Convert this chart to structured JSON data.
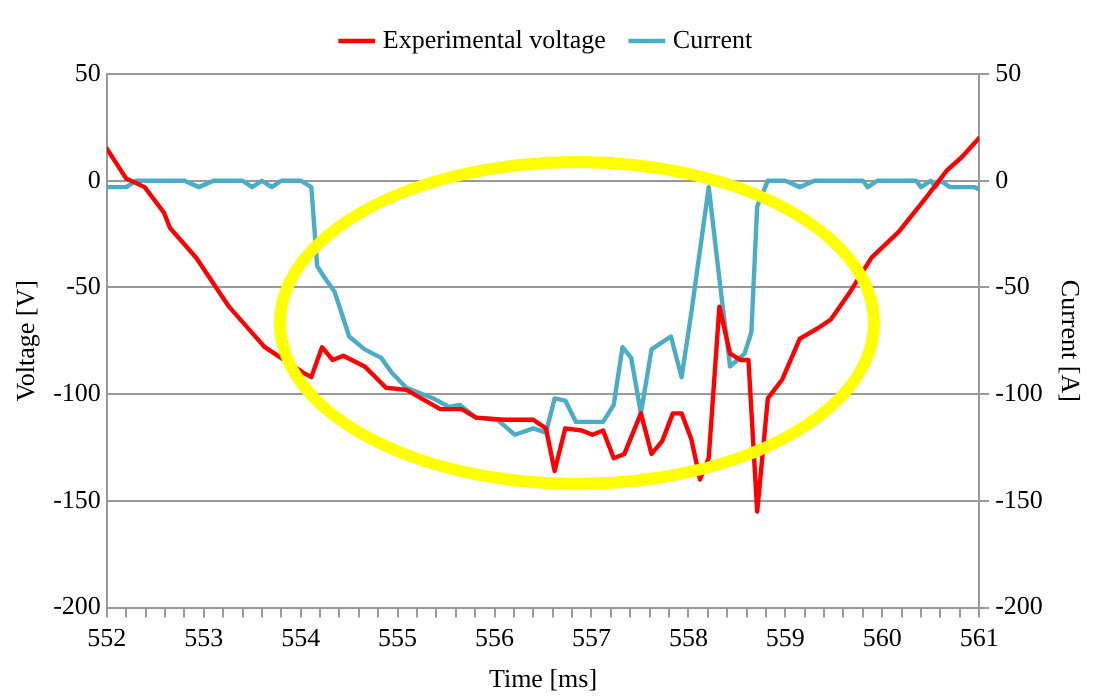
{
  "chart_data": {
    "type": "line",
    "xlabel": "Time [ms]",
    "ylabel": "Voltage [V]",
    "y2label": "Current [A]",
    "xlim": [
      552,
      561
    ],
    "xticks": [
      552,
      {
        "value": 552.2,
        "label": null
      },
      {
        "value": 552.4,
        "label": null
      },
      {
        "value": 552.6,
        "label": null
      },
      {
        "value": 552.8,
        "label": null
      },
      553,
      {
        "value": 553.2,
        "label": null
      },
      {
        "value": 553.4,
        "label": null
      },
      {
        "value": 553.6,
        "label": null
      },
      {
        "value": 553.8,
        "label": null
      },
      554,
      {
        "value": 554.2,
        "label": null
      },
      {
        "value": 554.4,
        "label": null
      },
      {
        "value": 554.6,
        "label": null
      },
      {
        "value": 554.8,
        "label": null
      },
      555,
      {
        "value": 555.2,
        "label": null
      },
      {
        "value": 555.4,
        "label": null
      },
      {
        "value": 555.6,
        "label": null
      },
      {
        "value": 555.8,
        "label": null
      },
      556,
      {
        "value": 556.2,
        "label": null
      },
      {
        "value": 556.4,
        "label": null
      },
      {
        "value": 556.6,
        "label": null
      },
      {
        "value": 556.8,
        "label": null
      },
      557,
      {
        "value": 557.2,
        "label": null
      },
      {
        "value": 557.4,
        "label": null
      },
      {
        "value": 557.6,
        "label": null
      },
      {
        "value": 557.8,
        "label": null
      },
      558,
      {
        "value": 558.2,
        "label": null
      },
      {
        "value": 558.4,
        "label": null
      },
      {
        "value": 558.6,
        "label": null
      },
      {
        "value": 558.8,
        "label": null
      },
      559,
      {
        "value": 559.2,
        "label": null
      },
      {
        "value": 559.4,
        "label": null
      },
      {
        "value": 559.6,
        "label": null
      },
      {
        "value": 559.8,
        "label": null
      },
      560,
      {
        "value": 560.2,
        "label": null
      },
      {
        "value": 560.4,
        "label": null
      },
      {
        "value": 560.6,
        "label": null
      },
      {
        "value": 560.8,
        "label": null
      },
      561
    ],
    "ylim": [
      -200,
      50
    ],
    "yticks": [
      -200,
      -150,
      -100,
      -50,
      0,
      50
    ],
    "y2lim": [
      -200,
      50
    ],
    "y2ticks": [
      -200,
      -150,
      -100,
      -50,
      0,
      50
    ],
    "grid": "y",
    "legend": "top",
    "marker": "none",
    "line_style": "solid",
    "series": [
      {
        "name": "Experimental voltage",
        "color": "#ff0000",
        "x": [
          552.0,
          552.2,
          552.39,
          552.59,
          552.65,
          552.92,
          553.26,
          553.63,
          554.03,
          554.11,
          554.22,
          554.33,
          554.44,
          554.66,
          554.88,
          555.09,
          555.44,
          555.66,
          555.81,
          556.1,
          556.4,
          556.53,
          556.62,
          556.73,
          556.9,
          557.01,
          557.12,
          557.23,
          557.34,
          557.51,
          557.62,
          557.73,
          557.84,
          557.93,
          558.03,
          558.12,
          558.21,
          558.32,
          558.43,
          558.54,
          558.62,
          558.71,
          558.82,
          558.97,
          559.15,
          559.34,
          559.47,
          559.67,
          559.89,
          560.17,
          560.45,
          560.67,
          560.82,
          561.0
        ],
        "values": [
          15,
          1,
          -3,
          -15,
          -22,
          -36,
          -59,
          -78,
          -90,
          -92,
          -78,
          -84,
          -82,
          -87,
          -97,
          -98,
          -107,
          -107,
          -111,
          -112,
          -112,
          -116,
          -136,
          -116,
          -117,
          -119,
          -117,
          -130,
          -128,
          -109,
          -128,
          -122,
          -109,
          -109,
          -121,
          -140,
          -130,
          -59,
          -81,
          -84,
          -84,
          -155,
          -102,
          -93,
          -74,
          -69,
          -65,
          -52,
          -36,
          -24,
          -8,
          5,
          11,
          20
        ]
      },
      {
        "name": "Current",
        "color": "#4bacc6",
        "axis": "y2",
        "x": [
          552.0,
          552.2,
          552.3,
          552.8,
          552.95,
          553.1,
          553.4,
          553.5,
          553.6,
          553.7,
          553.8,
          554.0,
          554.11,
          554.17,
          554.24,
          554.35,
          554.5,
          554.66,
          554.83,
          554.94,
          555.09,
          555.37,
          555.53,
          555.64,
          555.81,
          556.03,
          556.21,
          556.4,
          556.53,
          556.62,
          556.73,
          556.84,
          557.12,
          557.23,
          557.32,
          557.41,
          557.51,
          557.62,
          557.82,
          557.93,
          558.03,
          558.21,
          558.32,
          558.43,
          558.58,
          558.65,
          558.71,
          558.82,
          559.0,
          559.15,
          559.3,
          559.8,
          559.85,
          559.95,
          560.35,
          560.4,
          560.5,
          560.55,
          560.6,
          560.7,
          560.95,
          561.0
        ],
        "values": [
          -3,
          -3,
          0,
          0,
          -3,
          0,
          0,
          -3,
          0,
          -3,
          0,
          0,
          -3,
          -40,
          -45,
          -52,
          -73,
          -79,
          -83,
          -90,
          -97,
          -102,
          -106,
          -105,
          -111,
          -112,
          -119,
          -116,
          -118,
          -102,
          -103,
          -113,
          -113,
          -105,
          -78,
          -83,
          -109,
          -79,
          -73,
          -92,
          -62,
          -3,
          -46,
          -87,
          -81,
          -71,
          -12,
          0,
          0,
          -3,
          0,
          0,
          -3,
          0,
          0,
          -3,
          0,
          -3,
          0,
          -3,
          -3,
          -4
        ]
      }
    ]
  }
}
